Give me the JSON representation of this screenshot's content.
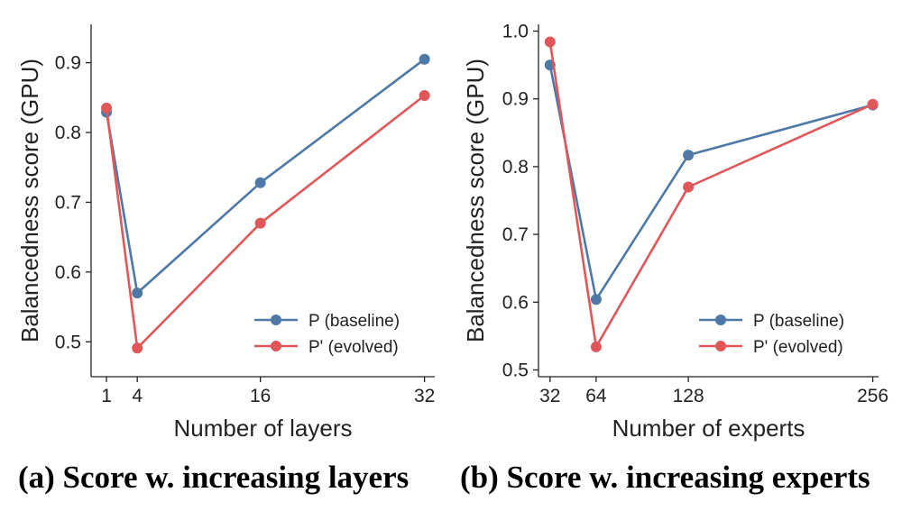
{
  "chart_data": [
    {
      "type": "line",
      "caption": "(a) Score w. increasing layers",
      "xlabel": "Number of layers",
      "ylabel": "Balancedness score (GPU)",
      "x": [
        1,
        4,
        16,
        32
      ],
      "xticks": [
        1,
        4,
        16,
        32
      ],
      "xlim": [
        -0.5,
        33
      ],
      "yticks": [
        0.5,
        0.6,
        0.7,
        0.8,
        0.9
      ],
      "ylim": [
        0.45,
        0.955
      ],
      "grid": false,
      "legend": "lower-right",
      "series": [
        {
          "name": "P (baseline)",
          "color": "#4e79a7",
          "values": [
            0.829,
            0.57,
            0.728,
            0.905
          ]
        },
        {
          "name": "P' (evolved)",
          "color": "#e15759",
          "values": [
            0.835,
            0.491,
            0.67,
            0.853
          ]
        }
      ]
    },
    {
      "type": "line",
      "caption": "(b) Score w. increasing experts",
      "xlabel": "Number of experts",
      "ylabel": "Balancedness score (GPU)",
      "x": [
        32,
        64,
        128,
        256
      ],
      "xticks": [
        32,
        64,
        128,
        256
      ],
      "xlim": [
        24,
        260
      ],
      "yticks": [
        0.5,
        0.6,
        0.7,
        0.8,
        0.9,
        1.0
      ],
      "ylim": [
        0.49,
        1.01
      ],
      "grid": false,
      "legend": "lower-right",
      "series": [
        {
          "name": "P (baseline)",
          "color": "#4e79a7",
          "values": [
            0.95,
            0.604,
            0.817,
            0.891
          ]
        },
        {
          "name": "P' (evolved)",
          "color": "#e15759",
          "values": [
            0.984,
            0.534,
            0.77,
            0.892
          ]
        }
      ]
    }
  ]
}
